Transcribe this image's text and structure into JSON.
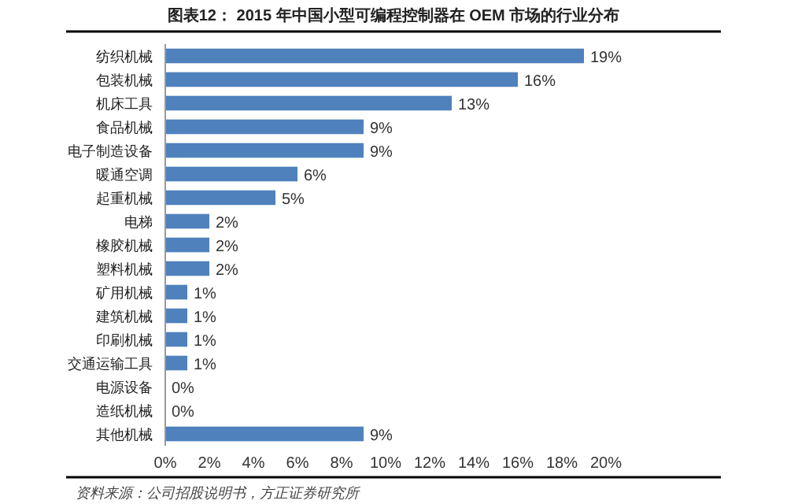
{
  "chart_data": {
    "type": "bar",
    "orientation": "horizontal",
    "title": "图表12：  2015 年中国小型可编程控制器在 OEM 市场的行业分布",
    "categories": [
      "纺织机械",
      "包装机械",
      "机床工具",
      "食品机械",
      "电子制造设备",
      "暖通空调",
      "起重机械",
      "电梯",
      "橡胶机械",
      "塑料机械",
      "矿用机械",
      "建筑机械",
      "印刷机械",
      "交通运输工具",
      "电源设备",
      "造纸机械",
      "其他机械"
    ],
    "values": [
      19,
      16,
      13,
      9,
      9,
      6,
      5,
      2,
      2,
      2,
      1,
      1,
      1,
      1,
      0,
      0,
      9
    ],
    "value_labels": [
      "19%",
      "16%",
      "13%",
      "9%",
      "9%",
      "6%",
      "5%",
      "2%",
      "2%",
      "2%",
      "1%",
      "1%",
      "1%",
      "1%",
      "0%",
      "0%",
      "9%"
    ],
    "color": "#4f81bd",
    "xlim": [
      0,
      20
    ],
    "xticks": [
      {
        "value": 0,
        "label": "0%"
      },
      {
        "value": 2,
        "label": "2%"
      },
      {
        "value": 4,
        "label": "4%"
      },
      {
        "value": 6,
        "label": "6%"
      },
      {
        "value": 8,
        "label": "8%"
      },
      {
        "value": 10,
        "label": "10%"
      },
      {
        "value": 12,
        "label": "12%"
      },
      {
        "value": 14,
        "label": "14%"
      },
      {
        "value": 16,
        "label": "16%"
      },
      {
        "value": 18,
        "label": "18%"
      },
      {
        "value": 20,
        "label": "20%"
      }
    ],
    "annotations": [
      "资料来源：公司招股说明书，方正证券研究所"
    ]
  }
}
